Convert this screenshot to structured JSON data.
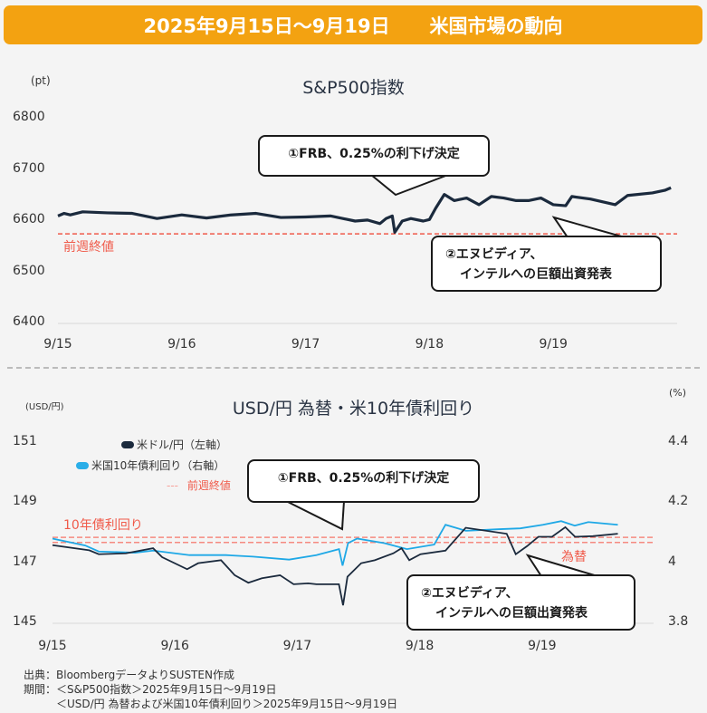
{
  "header": {
    "date_range": "2025年9月15日〜9月19日",
    "title": "米国市場の動向"
  },
  "colors": {
    "header": "#f3a211",
    "sp500_line": "#1b2a3d",
    "usdjpy_line": "#1b2a3d",
    "yield_line": "#1ea8e6",
    "prev_close": "#f05a4a"
  },
  "chart_data": [
    {
      "type": "line",
      "title": "S&P500指数",
      "ylabel": "(pt)",
      "ylim": [
        6400,
        6800
      ],
      "yticks": [
        "6800",
        "6700",
        "6600",
        "6500",
        "6400"
      ],
      "xticks": [
        "9/15",
        "9/16",
        "9/17",
        "9/18",
        "9/19"
      ],
      "prev_close": {
        "label": "前週終値",
        "value": 6575
      },
      "annotations": [
        "①FRB、0.25%の利下げ決定",
        "②エヌビディア、",
        "インテルへの巨額出資発表"
      ],
      "series": [
        {
          "x": [
            0,
            0.05,
            0.1,
            0.2,
            0.4,
            0.6,
            0.8,
            1.0,
            1.2,
            1.4,
            1.6,
            1.8,
            2.0,
            2.2,
            2.4,
            2.5,
            2.6,
            2.65,
            2.7,
            2.72,
            2.78,
            2.85,
            2.95,
            3.0,
            3.05,
            3.12,
            3.2,
            3.3,
            3.4,
            3.5,
            3.6,
            3.7,
            3.8,
            3.9,
            4.0,
            4.1,
            4.15,
            4.3,
            4.5,
            4.6,
            4.8,
            4.9,
            4.95
          ],
          "y": [
            6610,
            6615,
            6612,
            6618,
            6616,
            6615,
            6605,
            6612,
            6606,
            6612,
            6615,
            6607,
            6608,
            6610,
            6600,
            6602,
            6595,
            6605,
            6610,
            6578,
            6600,
            6605,
            6600,
            6603,
            6625,
            6652,
            6640,
            6645,
            6632,
            6648,
            6645,
            6640,
            6640,
            6645,
            6632,
            6630,
            6648,
            6643,
            6632,
            6650,
            6655,
            6660,
            6665
          ]
        }
      ]
    },
    {
      "type": "line",
      "title": "USD/円 為替・米10年債利回り",
      "ylabel_left": "(USD/円)",
      "ylabel_right": "(%)",
      "ylim_left": [
        145,
        151
      ],
      "ylim_right": [
        3.8,
        4.4
      ],
      "yticks_left": [
        "151",
        "149",
        "147",
        "145"
      ],
      "yticks_right": [
        "4.4",
        "4.2",
        "4",
        "3.8"
      ],
      "xticks": [
        "9/15",
        "9/16",
        "9/17",
        "9/18",
        "9/19"
      ],
      "legend": {
        "usdjpy": "米ドル/円（左軸）",
        "yield": "米国10年債利回り（右軸）",
        "prev_close": "前週終値",
        "prev_close_mark": "---"
      },
      "prev_close": {
        "yield_label": "10年債利回り",
        "yield_value": 4.086,
        "fx_label": "為替",
        "fx_value": 147.69
      },
      "annotations": [
        "①FRB、0.25%の利下げ決定",
        "②エヌビディア、",
        "インテルへの巨額出資発表"
      ],
      "series": [
        {
          "name": "米ドル/円（左軸）",
          "axis": "left",
          "x": [
            0,
            0.3,
            0.378,
            0.6,
            0.822,
            0.896,
            1.1,
            1.19,
            1.377,
            1.489,
            1.6,
            1.711,
            1.859,
            1.97,
            2.089,
            2.156,
            2.34,
            2.374,
            2.41,
            2.522,
            2.633,
            2.785,
            2.852,
            2.915,
            3.007,
            3.211,
            3.211,
            3.376,
            3.711,
            3.785,
            3.878,
            3.97,
            4.081,
            4.19,
            4.27,
            4.415,
            4.619
          ],
          "y": [
            147.6,
            147.43,
            147.3,
            147.33,
            147.5,
            147.2,
            146.8,
            147.0,
            147.1,
            146.6,
            146.35,
            146.5,
            146.6,
            146.3,
            146.33,
            146.3,
            146.3,
            145.6,
            146.55,
            147.0,
            147.1,
            147.33,
            147.5,
            147.1,
            147.3,
            147.42,
            147.42,
            148.18,
            147.98,
            147.3,
            147.57,
            147.88,
            147.88,
            148.2,
            147.88,
            147.9,
            147.98
          ]
        },
        {
          "name": "米国10年債利回り（右軸）",
          "axis": "right",
          "x": [
            0,
            0.267,
            0.378,
            0.674,
            0.822,
            1.119,
            1.415,
            1.637,
            1.933,
            2.156,
            2.341,
            2.37,
            2.415,
            2.489,
            2.711,
            2.896,
            3.119,
            3.211,
            3.378,
            3.637,
            3.822,
            4.007,
            4.156,
            4.267,
            4.378,
            4.619
          ],
          "y": [
            4.082,
            4.059,
            4.039,
            4.035,
            4.042,
            4.027,
            4.027,
            4.022,
            4.012,
            4.027,
            4.047,
            3.992,
            4.067,
            4.082,
            4.067,
            4.047,
            4.062,
            4.128,
            4.108,
            4.113,
            4.116,
            4.128,
            4.14,
            4.125,
            4.137,
            4.128
          ]
        }
      ]
    }
  ],
  "footer": {
    "source": "出典：BloombergデータよりSUSTEN作成",
    "period1": "期間：＜S&P500指数＞2025年9月15日〜9月19日",
    "period2": "　　　＜USD/円 為替および米国10年債利回り＞2025年9月15日〜9月19日"
  }
}
